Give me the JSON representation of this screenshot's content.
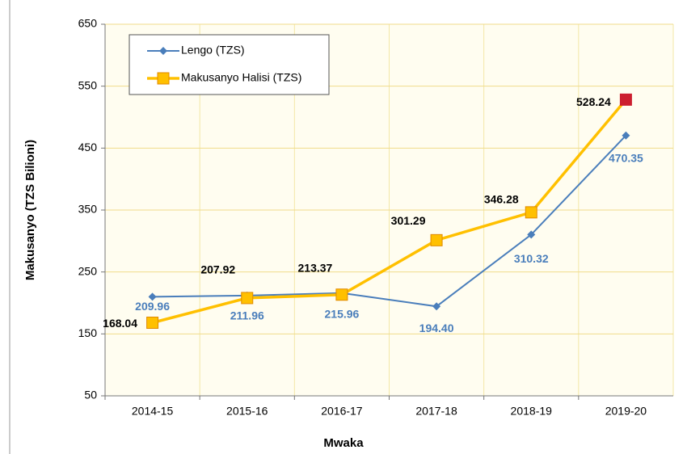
{
  "chart_data": {
    "type": "line",
    "x_label": "Mwaka",
    "y_label": "Makusanyo (TZS Bilioni)",
    "categories": [
      "2014-15",
      "2015-16",
      "2016-17",
      "2017-18",
      "2018-19",
      "2019-20"
    ],
    "series": [
      {
        "name": "Lengo (TZS)",
        "color": "#4a7ebb",
        "marker": "diamond",
        "label_color": "#4a7ebb",
        "values": [
          209.96,
          211.96,
          215.96,
          194.4,
          310.32,
          470.35
        ],
        "value_labels": [
          "209.96",
          "211.96",
          "215.96",
          "194.40",
          "310.32",
          "470.35"
        ]
      },
      {
        "name": "Makusanyo Halisi (TZS)",
        "color": "#ffc000",
        "marker": "square",
        "label_color": "#000000",
        "last_point_color": "#cc1f2e",
        "values": [
          168.04,
          207.92,
          213.37,
          301.29,
          346.28,
          528.24
        ],
        "value_labels": [
          "168.04",
          "207.92",
          "213.37",
          "301.29",
          "346.28",
          "528.24"
        ]
      }
    ],
    "ylim": [
      50,
      650
    ],
    "yticks": [
      50,
      150,
      250,
      350,
      450,
      550,
      650
    ],
    "grid": true,
    "legend": "upper left"
  }
}
